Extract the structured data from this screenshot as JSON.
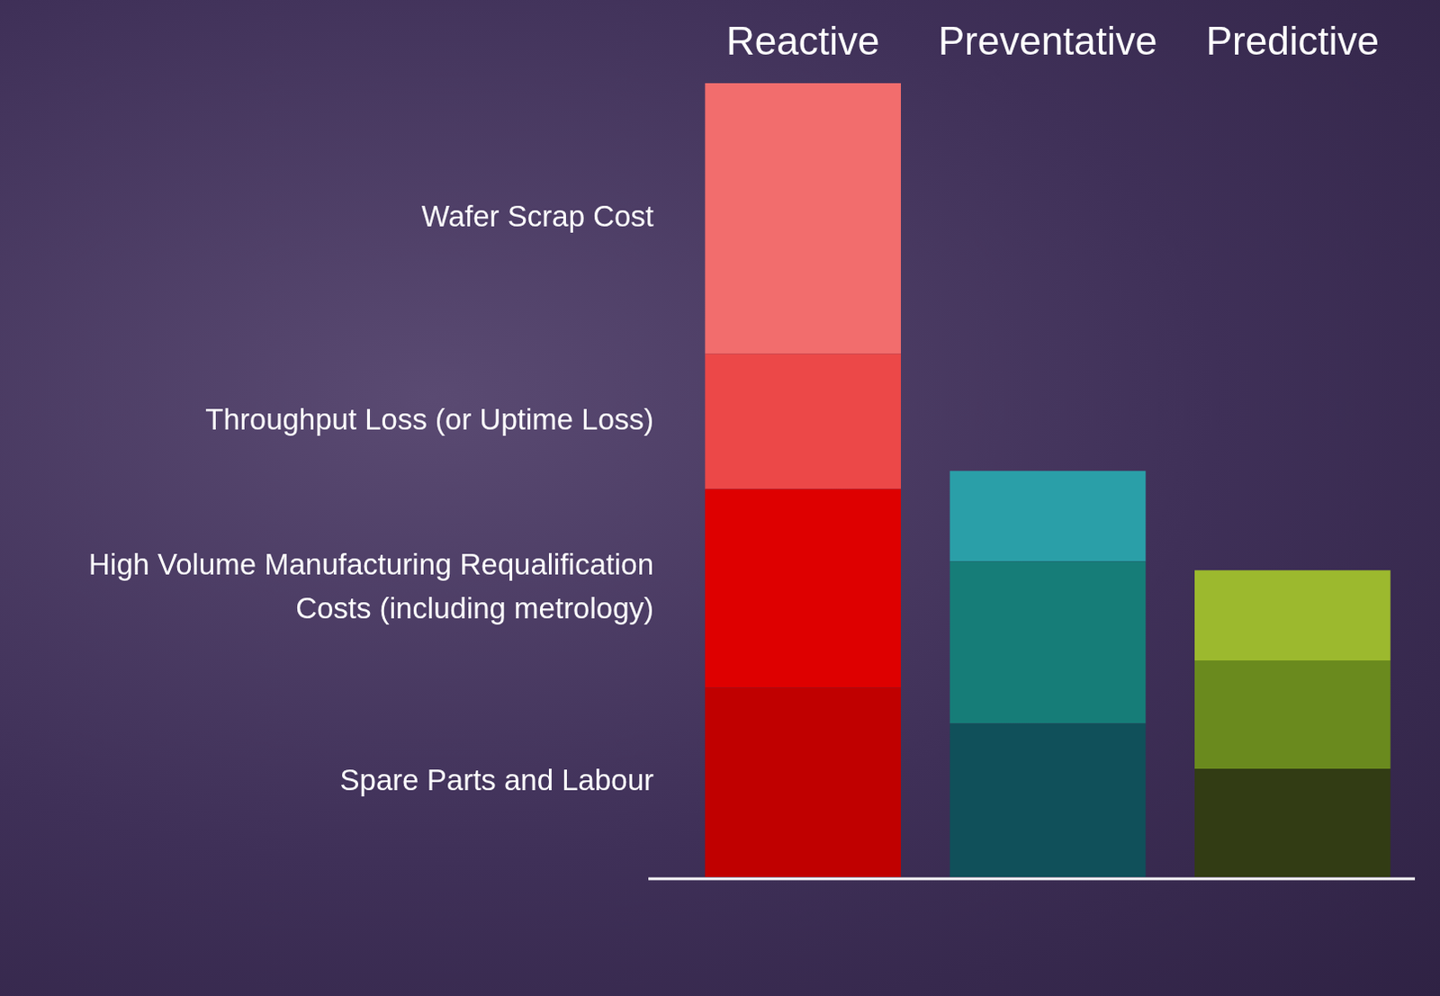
{
  "chart_data": {
    "type": "bar",
    "categories": [
      "Reactive",
      "Preventative",
      "Predictive"
    ],
    "series": [
      {
        "name": "Spare Parts and Labour",
        "colors": [
          "#c00000",
          "#10505a",
          "#323c14"
        ],
        "values": [
          21,
          17,
          12
        ]
      },
      {
        "name": "High Volume Manufacturing Requalification Costs (including metrology)",
        "colors": [
          "#de0000",
          "#167d78",
          "#6a8a1e"
        ],
        "values": [
          22,
          18,
          12
        ]
      },
      {
        "name": "Throughput Loss (or Uptime Loss)",
        "colors": [
          "#ec4848",
          "#2a9fa8",
          "#9cb92e"
        ],
        "values": [
          15,
          10,
          10
        ]
      },
      {
        "name": "Wafer Scrap Cost",
        "colors": [
          "#f26d6d",
          "#2a9fa8",
          "#9cb92e"
        ],
        "values": [
          30,
          0,
          0
        ]
      }
    ],
    "stacked": true,
    "ylim": [
      0,
      88
    ],
    "grid": false,
    "legend": "left",
    "tick_labels": "x"
  }
}
